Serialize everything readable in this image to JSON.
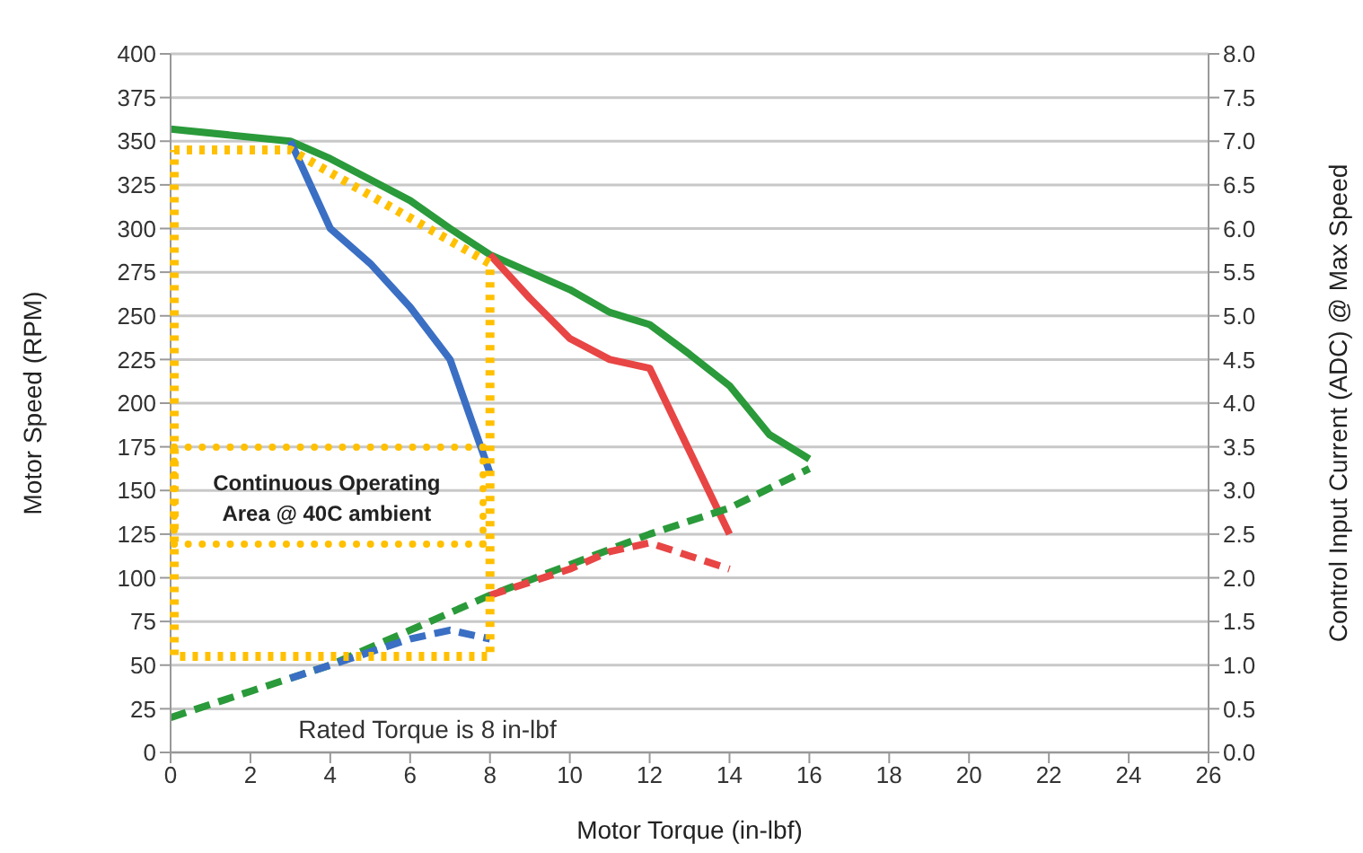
{
  "chart_data": {
    "type": "line",
    "xlabel": "Motor Torque (in-lbf)",
    "ylabel": "Motor Speed (RPM)",
    "y2label": "Control Input Current (ADC) @ Max Speed",
    "xlim": [
      0,
      26
    ],
    "xticks": [
      0,
      2,
      4,
      6,
      8,
      10,
      12,
      14,
      16,
      18,
      20,
      22,
      24,
      26
    ],
    "ylim": [
      0,
      400
    ],
    "yticks": [
      0,
      25,
      50,
      75,
      100,
      125,
      150,
      175,
      200,
      225,
      250,
      275,
      300,
      325,
      350,
      375,
      400
    ],
    "y2lim": [
      0,
      8
    ],
    "y2ticks": [
      {
        "value": 0,
        "label": "0.0"
      },
      {
        "value": 0.5,
        "label": "0.5"
      },
      {
        "value": 1,
        "label": "1.0"
      },
      {
        "value": 1.5,
        "label": "1.5"
      },
      {
        "value": 2,
        "label": "2.0"
      },
      {
        "value": 2.5,
        "label": "2.5"
      },
      {
        "value": 3,
        "label": "3.0"
      },
      {
        "value": 3.5,
        "label": "3.5"
      },
      {
        "value": 4,
        "label": "4.0"
      },
      {
        "value": 4.5,
        "label": "4.5"
      },
      {
        "value": 5,
        "label": "5.0"
      },
      {
        "value": 5.5,
        "label": "5.5"
      },
      {
        "value": 6,
        "label": "6.0"
      },
      {
        "value": 6.5,
        "label": "6.5"
      },
      {
        "value": 7,
        "label": "7.0"
      },
      {
        "value": 7.5,
        "label": "7.5"
      },
      {
        "value": 8,
        "label": "8.0"
      }
    ],
    "grid": "y",
    "marker": "none",
    "series": [
      {
        "color": "#2a9a3a",
        "line_style": "solid",
        "x": [
          0,
          3,
          4,
          5,
          6,
          7,
          8,
          9,
          10,
          11,
          12,
          13,
          14,
          15,
          16
        ],
        "values": [
          357,
          350,
          340,
          328,
          316,
          300,
          285,
          275,
          265,
          252,
          245,
          228,
          210,
          182,
          168
        ]
      },
      {
        "color": "#3a6fc4",
        "line_style": "solid",
        "x": [
          3,
          4,
          5,
          6,
          7,
          8
        ],
        "values": [
          350,
          300,
          280,
          255,
          225,
          160
        ]
      },
      {
        "color": "#e84545",
        "line_style": "solid",
        "x": [
          8,
          9,
          10,
          11,
          12,
          14
        ],
        "values": [
          285,
          260,
          237,
          225,
          220,
          125
        ]
      },
      {
        "color": "#2a9a3a",
        "line_style": "dashed",
        "axis": "y2",
        "x": [
          0,
          2,
          4,
          6,
          8,
          10,
          12,
          14,
          16
        ],
        "values": [
          0.4,
          0.7,
          1.0,
          1.4,
          1.8,
          2.15,
          2.5,
          2.8,
          3.25
        ]
      },
      {
        "color": "#e84545",
        "line_style": "dashed",
        "axis": "y2",
        "x": [
          8,
          9,
          10,
          11,
          12,
          13,
          14
        ],
        "values": [
          1.8,
          1.95,
          2.1,
          2.3,
          2.4,
          2.25,
          2.1
        ]
      },
      {
        "color": "#3a6fc4",
        "line_style": "dashed",
        "axis": "y2",
        "x": [
          3,
          4,
          5,
          6,
          7,
          8
        ],
        "values": [
          0.85,
          1.0,
          1.15,
          1.3,
          1.4,
          1.3
        ]
      }
    ],
    "annotations": [
      "Continuous Operating Area @ 40C ambient",
      "Rated Torque is 8 in-lbf"
    ]
  }
}
